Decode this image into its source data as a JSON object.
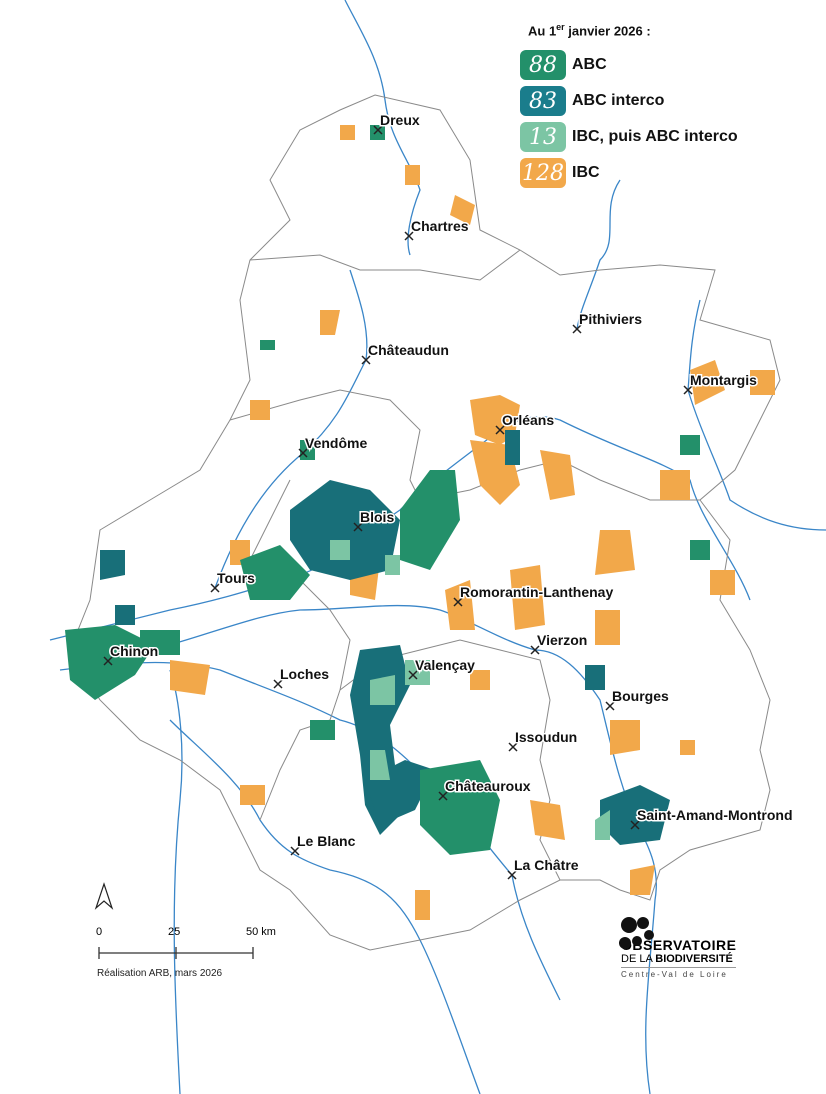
{
  "legend": {
    "title_prefix": "Au 1",
    "title_sup": "er",
    "title_suffix": " janvier 2026 :",
    "items": [
      {
        "count": "88",
        "label": "ABC",
        "color": "#23906a"
      },
      {
        "count": "83",
        "label": "ABC interco",
        "color": "#1a7d8c"
      },
      {
        "count": "13",
        "label": "IBC, puis ABC interco",
        "color": "#7cc5a4"
      },
      {
        "count": "128",
        "label": "IBC",
        "color": "#f2a84a"
      }
    ]
  },
  "colors": {
    "abc": "#23906a",
    "interco": "#186f79",
    "ibc_interco": "#7cc5a4",
    "ibc": "#f2a84a",
    "river": "#3a86c8",
    "border": "#8a8a8a"
  },
  "cities": [
    "Dreux",
    "Chartres",
    "Châteaudun",
    "Pithiviers",
    "Montargis",
    "Orléans",
    "Vendôme",
    "Blois",
    "Tours",
    "Romorantin-Lanthenay",
    "Vierzon",
    "Chinon",
    "Valençay",
    "Loches",
    "Bourges",
    "Issoudun",
    "Châteauroux",
    "Saint-Amand-Montrond",
    "Le Blanc",
    "La Châtre"
  ],
  "scale": {
    "ticks": [
      "0",
      "25",
      "50 km"
    ]
  },
  "north_arrow": "north-arrow-icon",
  "credit": "Réalisation ARB, mars 2026",
  "logo": {
    "line1": "OBSERVATOIRE",
    "line2a": "DE LA ",
    "line2b": "BIODIVERSITÉ",
    "line3": "Centre-Val de Loire"
  }
}
